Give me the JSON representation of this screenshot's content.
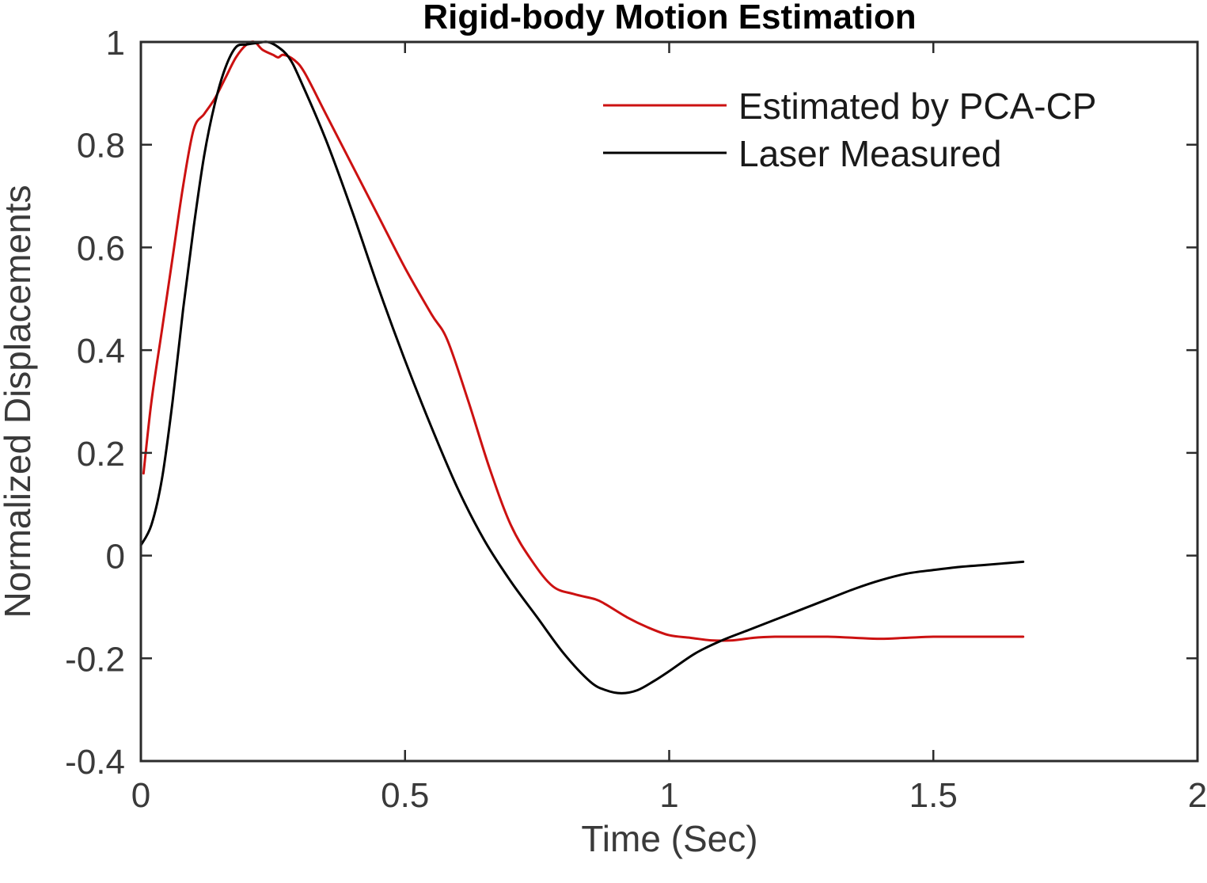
{
  "chart_data": {
    "type": "line",
    "title": "Rigid-body Motion Estimation",
    "xlabel": "Time (Sec)",
    "ylabel": "Normalized Displacements",
    "xlim": [
      0,
      2
    ],
    "ylim": [
      -0.4,
      1
    ],
    "xticks": [
      0,
      0.5,
      1,
      1.5,
      2
    ],
    "xtick_labels": [
      "0",
      "0.5",
      "1",
      "1.5",
      "2"
    ],
    "yticks": [
      -0.4,
      -0.2,
      0,
      0.2,
      0.4,
      0.6,
      0.8,
      1
    ],
    "ytick_labels": [
      "-0.4",
      "-0.2",
      "0",
      "0.2",
      "0.4",
      "0.6",
      "0.8",
      "1"
    ],
    "grid": false,
    "legend_position": "top-right",
    "series": [
      {
        "name": "Estimated by PCA-CP",
        "color": "#cc1111",
        "x": [
          0.005,
          0.02,
          0.04,
          0.06,
          0.08,
          0.1,
          0.12,
          0.14,
          0.16,
          0.18,
          0.2,
          0.215,
          0.23,
          0.25,
          0.26,
          0.27,
          0.29,
          0.31,
          0.35,
          0.4,
          0.45,
          0.5,
          0.55,
          0.58,
          0.62,
          0.66,
          0.7,
          0.74,
          0.78,
          0.82,
          0.86,
          0.88,
          0.92,
          0.96,
          1.0,
          1.04,
          1.08,
          1.12,
          1.16,
          1.2,
          1.25,
          1.3,
          1.35,
          1.4,
          1.45,
          1.5,
          1.55,
          1.6,
          1.67
        ],
        "y": [
          0.16,
          0.3,
          0.44,
          0.58,
          0.72,
          0.83,
          0.86,
          0.89,
          0.93,
          0.97,
          0.995,
          1.0,
          0.985,
          0.975,
          0.97,
          0.975,
          0.965,
          0.94,
          0.86,
          0.76,
          0.66,
          0.56,
          0.47,
          0.42,
          0.3,
          0.17,
          0.06,
          -0.01,
          -0.06,
          -0.075,
          -0.085,
          -0.095,
          -0.12,
          -0.14,
          -0.155,
          -0.16,
          -0.165,
          -0.165,
          -0.16,
          -0.158,
          -0.158,
          -0.158,
          -0.16,
          -0.162,
          -0.16,
          -0.158,
          -0.158,
          -0.158,
          -0.158
        ]
      },
      {
        "name": "Laser Measured",
        "color": "#000000",
        "x": [
          0.0,
          0.02,
          0.04,
          0.06,
          0.08,
          0.1,
          0.12,
          0.14,
          0.16,
          0.18,
          0.2,
          0.22,
          0.24,
          0.26,
          0.28,
          0.3,
          0.35,
          0.4,
          0.45,
          0.5,
          0.55,
          0.6,
          0.65,
          0.7,
          0.75,
          0.8,
          0.85,
          0.88,
          0.91,
          0.94,
          0.97,
          1.0,
          1.05,
          1.1,
          1.15,
          1.2,
          1.25,
          1.3,
          1.35,
          1.4,
          1.45,
          1.5,
          1.55,
          1.6,
          1.67
        ],
        "y": [
          0.02,
          0.06,
          0.15,
          0.3,
          0.48,
          0.64,
          0.78,
          0.88,
          0.95,
          0.99,
          0.995,
          0.998,
          1.0,
          0.99,
          0.97,
          0.93,
          0.81,
          0.67,
          0.52,
          0.38,
          0.25,
          0.13,
          0.03,
          -0.05,
          -0.12,
          -0.19,
          -0.245,
          -0.262,
          -0.268,
          -0.262,
          -0.245,
          -0.225,
          -0.19,
          -0.165,
          -0.145,
          -0.125,
          -0.105,
          -0.085,
          -0.065,
          -0.048,
          -0.035,
          -0.028,
          -0.022,
          -0.018,
          -0.012
        ]
      }
    ]
  }
}
